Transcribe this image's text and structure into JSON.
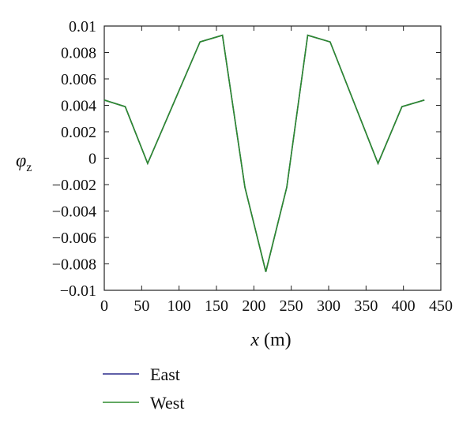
{
  "chart_data": {
    "type": "line",
    "xlabel": {
      "symbol": "x",
      "unit": "(m)"
    },
    "ylabel": {
      "symbol": "φ",
      "subscript": "z"
    },
    "xlim": [
      0,
      450
    ],
    "ylim": [
      -0.01,
      0.01
    ],
    "x_ticks": [
      0,
      50,
      100,
      150,
      200,
      250,
      300,
      350,
      400,
      450
    ],
    "x_tick_labels": [
      "0",
      "50",
      "100",
      "150",
      "200",
      "250",
      "300",
      "350",
      "400",
      "450"
    ],
    "y_ticks": [
      0.01,
      0.008,
      0.006,
      0.004,
      0.002,
      0,
      -0.002,
      -0.004,
      -0.006,
      -0.008,
      -0.01
    ],
    "y_tick_labels": [
      "0.01",
      "0.008",
      "0.006",
      "0.004",
      "0.002",
      "0",
      "−0.002",
      "−0.004",
      "−0.006",
      "−0.008",
      "−0.01"
    ],
    "grid": false,
    "legend_position": "below",
    "series": [
      {
        "name": "East",
        "color": "#2b2b8c",
        "x": [
          0,
          28,
          58,
          128,
          158,
          188,
          216,
          244,
          272,
          302,
          366,
          398,
          428
        ],
        "y": [
          0.0044,
          0.0039,
          -0.0004,
          0.0088,
          0.0093,
          -0.0022,
          -0.0086,
          -0.0022,
          0.0093,
          0.0088,
          -0.0004,
          0.0039,
          0.0044
        ]
      },
      {
        "name": "West",
        "color": "#2e8b2e",
        "x": [
          0,
          28,
          58,
          128,
          158,
          188,
          216,
          244,
          272,
          302,
          366,
          398,
          428
        ],
        "y": [
          0.0044,
          0.0039,
          -0.0004,
          0.0088,
          0.0093,
          -0.0022,
          -0.0086,
          -0.0022,
          0.0093,
          0.0088,
          -0.0004,
          0.0039,
          0.0044
        ]
      }
    ]
  }
}
